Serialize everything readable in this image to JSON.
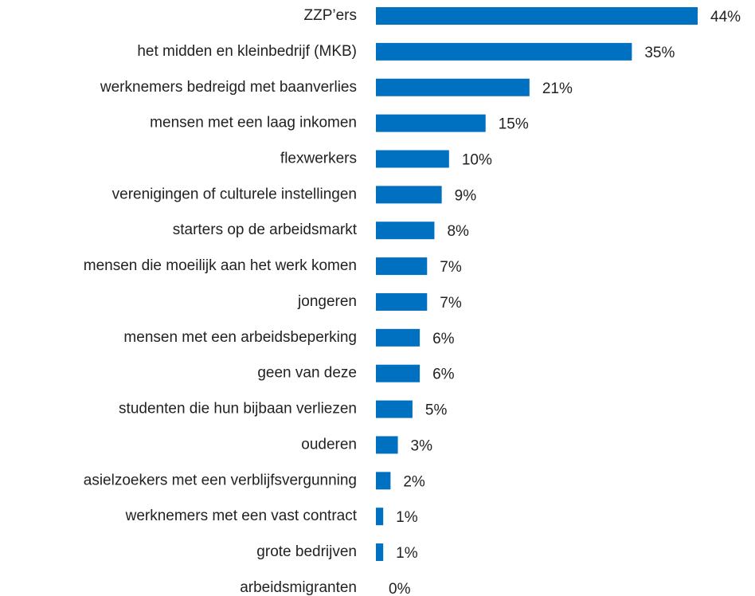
{
  "chart_data": {
    "type": "bar",
    "orientation": "horizontal",
    "categories": [
      "ZZP’ers",
      "het midden en kleinbedrijf (MKB)",
      "werknemers bedreigd met baanverlies",
      "mensen met een laag inkomen",
      "flexwerkers",
      "verenigingen of culturele instellingen",
      "starters op de arbeidsmarkt",
      "mensen die moeilijk aan het werk komen",
      "jongeren",
      "mensen met een arbeidsbeperking",
      "geen van deze",
      "studenten die hun bijbaan verliezen",
      "ouderen",
      "asielzoekers met een verblijfsvergunning",
      "werknemers met een vast contract",
      "grote bedrijven",
      "arbeidsmigranten"
    ],
    "values": [
      44,
      35,
      21,
      15,
      10,
      9,
      8,
      7,
      7,
      6,
      6,
      5,
      3,
      2,
      1,
      1,
      0
    ],
    "value_labels": [
      "44%",
      "35%",
      "21%",
      "15%",
      "10%",
      "9%",
      "8%",
      "7%",
      "7%",
      "6%",
      "6%",
      "5%",
      "3%",
      "2%",
      "1%",
      "1%",
      "0%"
    ],
    "color": "#0070c0"
  }
}
